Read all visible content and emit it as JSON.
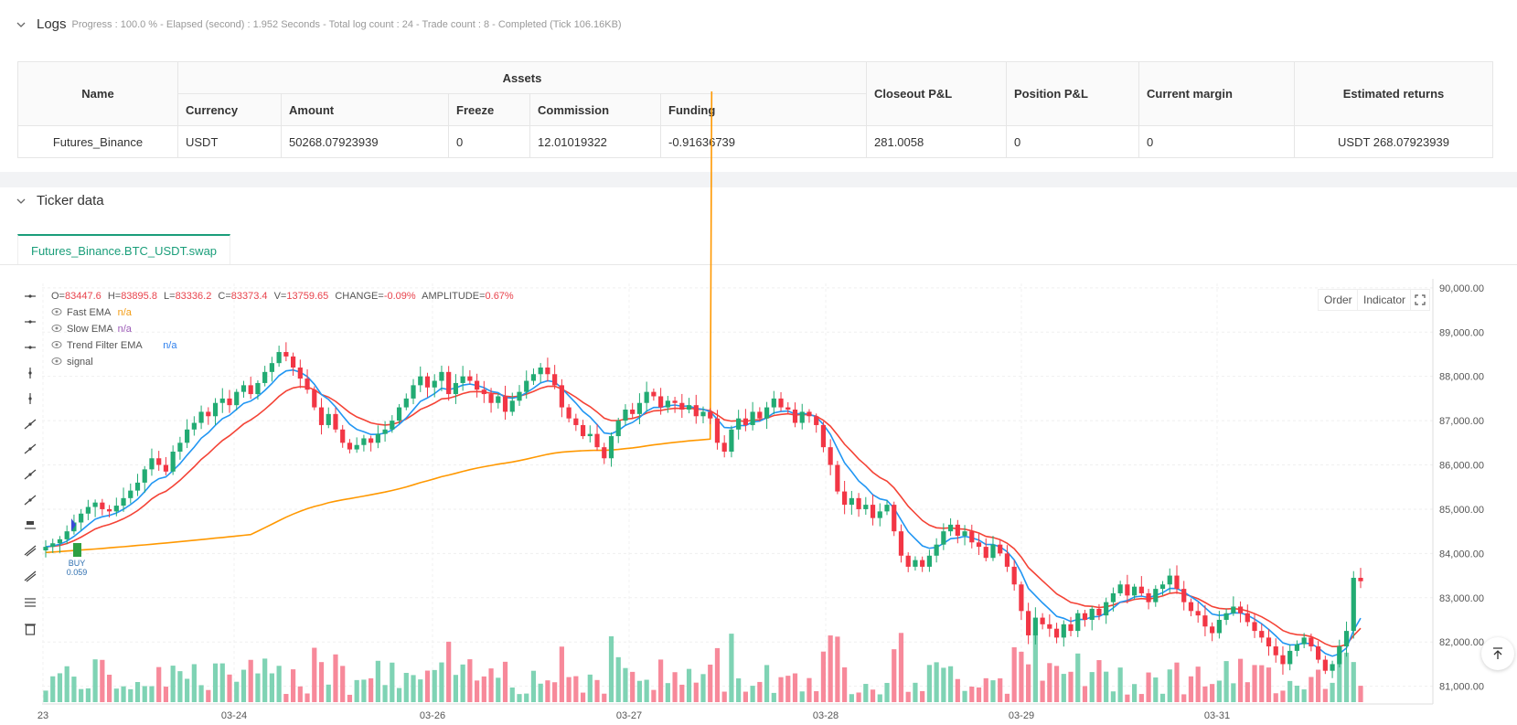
{
  "logs": {
    "title": "Logs",
    "summary": "Progress : 100.0 % - Elapsed (second) : 1.952  Seconds - Total log count : 24 - Trade count : 8 - Completed (Tick 106.16KB)"
  },
  "assets_table": {
    "headers": {
      "name": "Name",
      "assets": "Assets",
      "currency": "Currency",
      "amount": "Amount",
      "freeze": "Freeze",
      "commission": "Commission",
      "funding": "Funding",
      "closeout": "Closeout P&L",
      "position": "Position P&L",
      "margin": "Current margin",
      "returns": "Estimated returns"
    },
    "row": {
      "name": "Futures_Binance",
      "currency": "USDT",
      "amount": "50268.07923939",
      "freeze": "0",
      "commission": "12.01019322",
      "funding": "-0.91636739",
      "closeout": "281.0058",
      "position": "0",
      "margin": "0",
      "returns": "USDT 268.07923939"
    }
  },
  "ticker": {
    "title": "Ticker data",
    "tab": "Futures_Binance.BTC_USDT.swap",
    "order_btn": "Order",
    "indicator_btn": "Indicator"
  },
  "legend": {
    "ohlc": {
      "o_label": "O=",
      "o": "83447.6",
      "h_label": "H=",
      "h": "83895.8",
      "l_label": "L=",
      "l": "83336.2",
      "c_label": "C=",
      "c": "83373.4",
      "v_label": "V=",
      "v": "13759.65",
      "change_label": "CHANGE=",
      "change": "-0.09%",
      "amp_label": "AMPLITUDE=",
      "amp": "0.67%"
    },
    "items": [
      {
        "label": "Fast EMA",
        "value": "n/a",
        "color": "#f39c12"
      },
      {
        "label": "Slow EMA",
        "value": "n/a",
        "color": "#9b59b6"
      },
      {
        "label": "Trend Filter EMA",
        "value": "n/a",
        "color": "#2f80ed"
      },
      {
        "label": "signal",
        "value": "",
        "color": "#666666"
      }
    ]
  },
  "buy_marker": {
    "label": "BUY",
    "qty": "0.059"
  },
  "chart_data": {
    "type": "candlestick",
    "y_axis_labels": [
      "90,000.00",
      "89,000.00",
      "88,000.00",
      "87,000.00",
      "86,000.00",
      "85,000.00",
      "84,000.00",
      "83,000.00",
      "82,000.00",
      "81,000.00"
    ],
    "x_axis_labels": [
      "23",
      "03-24",
      "03-26",
      "03-27",
      "03-28",
      "03-29",
      "03-31"
    ],
    "ylim": [
      80600,
      90100
    ],
    "closes": [
      84150,
      84230,
      84320,
      84500,
      84700,
      84900,
      85050,
      85150,
      85000,
      84950,
      85080,
      85250,
      85420,
      85600,
      85900,
      86150,
      86000,
      85850,
      86300,
      86500,
      86800,
      86950,
      87200,
      87100,
      87400,
      87500,
      87350,
      87650,
      87800,
      87600,
      87850,
      88100,
      88300,
      88550,
      88450,
      88200,
      87950,
      87700,
      87300,
      86900,
      87150,
      86800,
      86500,
      86350,
      86450,
      86600,
      86500,
      86700,
      86800,
      87000,
      87300,
      87500,
      87800,
      88000,
      87750,
      87900,
      88100,
      87600,
      87850,
      88000,
      87900,
      87700,
      87600,
      87400,
      87550,
      87200,
      87450,
      87650,
      87900,
      88050,
      88200,
      88050,
      87800,
      87300,
      87050,
      86900,
      86650,
      86700,
      86400,
      86150,
      86650,
      87000,
      87250,
      87150,
      87400,
      87650,
      87550,
      87300,
      87450,
      87400,
      87250,
      87350,
      87100,
      87200,
      87050,
      86500,
      86300,
      86800,
      87050,
      86900,
      87200,
      87050,
      87300,
      87500,
      87300,
      87250,
      86950,
      87200,
      87100,
      86900,
      86400,
      86000,
      85400,
      85100,
      85250,
      85000,
      85100,
      84800,
      84950,
      85100,
      84500,
      83950,
      83700,
      83850,
      83700,
      83950,
      84200,
      84500,
      84650,
      84400,
      84500,
      84250,
      84150,
      83900,
      84200,
      84000,
      83700,
      83300,
      82700,
      82150,
      82550,
      82400,
      82300,
      82100,
      82400,
      82250,
      82650,
      82500,
      82750,
      82600,
      82900,
      83100,
      83300,
      83050,
      83250,
      83100,
      82900,
      83200,
      83300,
      83500,
      83200,
      82900,
      82700,
      82600,
      82350,
      82200,
      82500,
      82650,
      82800,
      82650,
      82450,
      82250,
      82100,
      81900,
      81700,
      81500,
      81800,
      81950,
      82100,
      81900,
      81600,
      81350,
      81500,
      81900,
      82250,
      83450,
      83373
    ]
  }
}
